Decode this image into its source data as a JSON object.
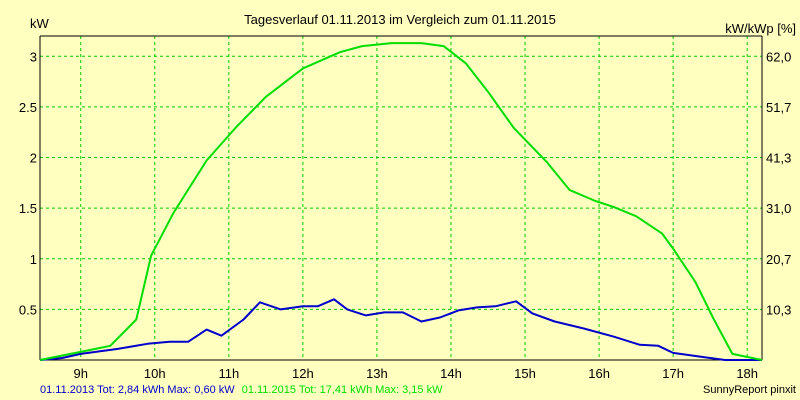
{
  "chart_data": {
    "type": "line",
    "title": "Tagesverlauf 01.11.2013 im Vergleich zum 01.11.2015",
    "ylabel_left": "kW",
    "ylabel_right": "kW/kWp [%]",
    "ylim": [
      0,
      3.2
    ],
    "xlim": [
      8.45,
      18.2
    ],
    "yticks_left": [
      "0.5",
      "1",
      "1.5",
      "2",
      "2.5",
      "3"
    ],
    "yticks_right": [
      "10,3",
      "20,7",
      "31,0",
      "41,3",
      "51,7",
      "62,0"
    ],
    "xticks": [
      "9h",
      "10h",
      "11h",
      "12h",
      "13h",
      "14h",
      "15h",
      "16h",
      "17h",
      "18h"
    ],
    "grid": true,
    "series": [
      {
        "name": "01.11.2013",
        "summary": "01.11.2013 Tot: 2,84 kWh Max: 0,60 kW",
        "color": "#0000cc",
        "points": [
          [
            8.45,
            0
          ],
          [
            8.75,
            0.02
          ],
          [
            9.0,
            0.06
          ],
          [
            9.5,
            0.11
          ],
          [
            9.9,
            0.16
          ],
          [
            10.2,
            0.18
          ],
          [
            10.45,
            0.18
          ],
          [
            10.7,
            0.3
          ],
          [
            10.9,
            0.24
          ],
          [
            11.2,
            0.4
          ],
          [
            11.42,
            0.57
          ],
          [
            11.7,
            0.5
          ],
          [
            12.0,
            0.53
          ],
          [
            12.2,
            0.53
          ],
          [
            12.42,
            0.6
          ],
          [
            12.6,
            0.5
          ],
          [
            12.85,
            0.44
          ],
          [
            13.1,
            0.47
          ],
          [
            13.35,
            0.47
          ],
          [
            13.6,
            0.38
          ],
          [
            13.85,
            0.42
          ],
          [
            14.1,
            0.49
          ],
          [
            14.35,
            0.52
          ],
          [
            14.6,
            0.53
          ],
          [
            14.88,
            0.58
          ],
          [
            15.1,
            0.46
          ],
          [
            15.4,
            0.38
          ],
          [
            15.8,
            0.31
          ],
          [
            16.2,
            0.23
          ],
          [
            16.55,
            0.15
          ],
          [
            16.8,
            0.14
          ],
          [
            17.0,
            0.07
          ],
          [
            17.4,
            0.03
          ],
          [
            17.7,
            0.0
          ],
          [
            18.2,
            0.0
          ]
        ]
      },
      {
        "name": "01.11.2015",
        "summary": "01.11.2015 Tot: 17,41 kWh Max: 3,15 kW",
        "color": "#00dd00",
        "points": [
          [
            8.45,
            0
          ],
          [
            9.0,
            0.08
          ],
          [
            9.4,
            0.14
          ],
          [
            9.75,
            0.4
          ],
          [
            9.95,
            1.03
          ],
          [
            10.25,
            1.45
          ],
          [
            10.7,
            1.97
          ],
          [
            11.1,
            2.3
          ],
          [
            11.5,
            2.6
          ],
          [
            12.0,
            2.88
          ],
          [
            12.5,
            3.04
          ],
          [
            12.8,
            3.1
          ],
          [
            13.2,
            3.13
          ],
          [
            13.6,
            3.13
          ],
          [
            13.9,
            3.1
          ],
          [
            14.2,
            2.93
          ],
          [
            14.5,
            2.65
          ],
          [
            14.85,
            2.29
          ],
          [
            15.3,
            1.95
          ],
          [
            15.6,
            1.68
          ],
          [
            15.95,
            1.57
          ],
          [
            16.2,
            1.51
          ],
          [
            16.5,
            1.42
          ],
          [
            16.85,
            1.25
          ],
          [
            17.0,
            1.1
          ],
          [
            17.3,
            0.77
          ],
          [
            17.55,
            0.4
          ],
          [
            17.8,
            0.06
          ],
          [
            18.2,
            0.0
          ]
        ]
      }
    ]
  },
  "footer": {
    "series1_text": "01.11.2013 Tot: 2,84 kWh Max: 0,60 kW",
    "series2_text": "01.11.2015 Tot: 17,41 kWh Max: 3,15 kW",
    "credit": "SunnyReport pinxit"
  },
  "colors": {
    "background": "#ffffc0",
    "grid": "#00cc00",
    "series1": "#0000cc",
    "series2": "#00dd00"
  }
}
